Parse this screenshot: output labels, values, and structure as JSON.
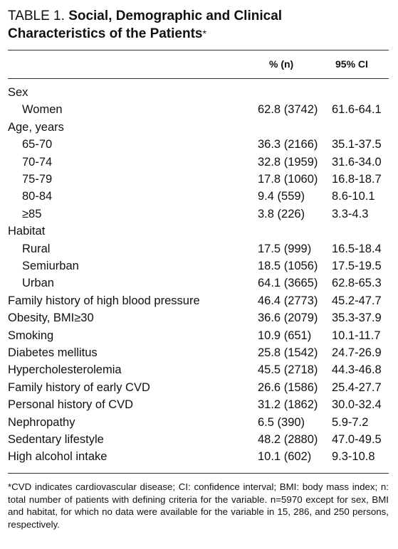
{
  "title": {
    "label": "TABLE 1.",
    "text_line1": "Social, Demographic and Clinical",
    "text_line2": "Characteristics of the Patients",
    "mark": "*"
  },
  "header": {
    "pct": "% (n)",
    "ci": "95% CI"
  },
  "rows": [
    {
      "name": "Sex",
      "pct": "",
      "ci": "",
      "indent": false
    },
    {
      "name": "Women",
      "pct": "62.8 (3742)",
      "ci": "61.6-64.1",
      "indent": true
    },
    {
      "name": "Age, years",
      "pct": "",
      "ci": "",
      "indent": false
    },
    {
      "name": "65-70",
      "pct": "36.3 (2166)",
      "ci": "35.1-37.5",
      "indent": true
    },
    {
      "name": "70-74",
      "pct": "32.8 (1959)",
      "ci": "31.6-34.0",
      "indent": true
    },
    {
      "name": "75-79",
      "pct": "17.8 (1060)",
      "ci": "16.8-18.7",
      "indent": true
    },
    {
      "name": "80-84",
      "pct": "9.4 (559)",
      "ci": "8.6-10.1",
      "indent": true
    },
    {
      "name": "≥85",
      "pct": "3.8 (226)",
      "ci": "3.3-4.3",
      "indent": true
    },
    {
      "name": "Habitat",
      "pct": "",
      "ci": "",
      "indent": false
    },
    {
      "name": "Rural",
      "pct": "17.5 (999)",
      "ci": "16.5-18.4",
      "indent": true
    },
    {
      "name": "Semiurban",
      "pct": "18.5 (1056)",
      "ci": "17.5-19.5",
      "indent": true
    },
    {
      "name": "Urban",
      "pct": "64.1 (3665)",
      "ci": "62.8-65.3",
      "indent": true
    },
    {
      "name": "Family history of high blood pressure",
      "pct": "46.4 (2773)",
      "ci": "45.2-47.7",
      "indent": false
    },
    {
      "name": "Obesity, BMI≥30",
      "pct": "36.6 (2079)",
      "ci": "35.3-37.9",
      "indent": false
    },
    {
      "name": "Smoking",
      "pct": "10.9 (651)",
      "ci": "10.1-11.7",
      "indent": false
    },
    {
      "name": "Diabetes mellitus",
      "pct": "25.8 (1542)",
      "ci": "24.7-26.9",
      "indent": false
    },
    {
      "name": "Hypercholesterolemia",
      "pct": "45.5 (2718)",
      "ci": "44.3-46.8",
      "indent": false
    },
    {
      "name": "Family history of early CVD",
      "pct": "26.6 (1586)",
      "ci": "25.4-27.7",
      "indent": false
    },
    {
      "name": "Personal history of CVD",
      "pct": "31.2 (1862)",
      "ci": "30.0-32.4",
      "indent": false
    },
    {
      "name": "Nephropathy",
      "pct": "6.5 (390)",
      "ci": "5.9-7.2",
      "indent": false
    },
    {
      "name": "Sedentary lifestyle",
      "pct": "48.2 (2880)",
      "ci": "47.0-49.5",
      "indent": false
    },
    {
      "name": "High alcohol intake",
      "pct": "10.1 (602)",
      "ci": "9.3-10.8",
      "indent": false
    }
  ],
  "footnote": "*CVD indicates cardiovascular disease; CI: confidence interval; BMI: body mass index; n: total number of patients with defining criteria for the variable. n=5970 except for sex, BMI and habitat, for which no data were available for the variable in 15, 286, and 250 persons, respectively."
}
